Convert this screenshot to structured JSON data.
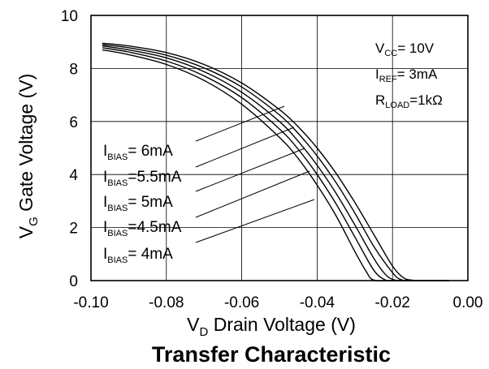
{
  "chart_data": {
    "type": "line",
    "title": "Transfer Characteristic",
    "xlabel": {
      "main": "V",
      "sub": "D",
      "rest": " Drain Voltage (V)"
    },
    "ylabel": {
      "main": "V",
      "sub": "G",
      "rest": " Gate Voltage (V)"
    },
    "xlim": [
      -0.1,
      0.0
    ],
    "ylim": [
      0,
      10
    ],
    "xticks": [
      -0.1,
      -0.08,
      -0.06,
      -0.04,
      -0.02,
      0.0
    ],
    "xtick_labels": [
      "-0.10",
      "-0.08",
      "-0.06",
      "-0.04",
      "-0.02",
      "0.00"
    ],
    "yticks": [
      0,
      2,
      4,
      6,
      8,
      10
    ],
    "ytick_labels": [
      "0",
      "2",
      "4",
      "6",
      "8",
      "10"
    ],
    "grid": true,
    "conditions": [
      {
        "main": "V",
        "sub": "CC",
        "rest": "= 10V"
      },
      {
        "main": "I",
        "sub": "REF",
        "rest": "= 3mA"
      },
      {
        "main": "R",
        "sub": "LOAD",
        "rest": "=1kΩ"
      }
    ],
    "series": [
      {
        "name": {
          "main": "I",
          "sub": "BIAS",
          "rest": "= 6mA"
        },
        "x": [
          -0.097,
          -0.09,
          -0.08,
          -0.07,
          -0.06,
          -0.05,
          -0.045,
          -0.04,
          -0.035,
          -0.03,
          -0.025,
          -0.02,
          -0.017,
          -0.015,
          -0.013,
          -0.01,
          -0.005
        ],
        "y": [
          8.95,
          8.85,
          8.6,
          8.15,
          7.45,
          6.45,
          5.8,
          5.0,
          4.05,
          2.95,
          1.75,
          0.55,
          0.1,
          0.02,
          0.0,
          0.0,
          0.0
        ]
      },
      {
        "name": {
          "main": "I",
          "sub": "BIAS",
          "rest": "=5.5mA"
        },
        "x": [
          -0.097,
          -0.09,
          -0.08,
          -0.07,
          -0.06,
          -0.05,
          -0.045,
          -0.04,
          -0.035,
          -0.03,
          -0.025,
          -0.02,
          -0.018,
          -0.016,
          -0.013,
          -0.01,
          -0.005
        ],
        "y": [
          8.9,
          8.78,
          8.5,
          8.02,
          7.3,
          6.25,
          5.55,
          4.7,
          3.7,
          2.55,
          1.3,
          0.3,
          0.05,
          0.0,
          0.0,
          0.0,
          0.0
        ]
      },
      {
        "name": {
          "main": "I",
          "sub": "BIAS",
          "rest": "= 5mA"
        },
        "x": [
          -0.097,
          -0.09,
          -0.08,
          -0.07,
          -0.06,
          -0.05,
          -0.045,
          -0.04,
          -0.035,
          -0.03,
          -0.025,
          -0.022,
          -0.02,
          -0.018,
          -0.015,
          -0.01,
          -0.005
        ],
        "y": [
          8.85,
          8.7,
          8.4,
          7.88,
          7.1,
          6.0,
          5.25,
          4.35,
          3.3,
          2.1,
          0.85,
          0.25,
          0.05,
          0.0,
          0.0,
          0.0,
          0.0
        ]
      },
      {
        "name": {
          "main": "I",
          "sub": "BIAS",
          "rest": "=4.5mA"
        },
        "x": [
          -0.097,
          -0.09,
          -0.08,
          -0.07,
          -0.06,
          -0.05,
          -0.045,
          -0.04,
          -0.035,
          -0.03,
          -0.025,
          -0.022,
          -0.02,
          -0.015,
          -0.01,
          -0.005
        ],
        "y": [
          8.78,
          8.62,
          8.28,
          7.72,
          6.9,
          5.72,
          4.95,
          4.0,
          2.9,
          1.65,
          0.4,
          0.03,
          0.0,
          0.0,
          0.0,
          0.0
        ]
      },
      {
        "name": {
          "main": "I",
          "sub": "BIAS",
          "rest": "= 4mA"
        },
        "x": [
          -0.097,
          -0.09,
          -0.08,
          -0.07,
          -0.06,
          -0.05,
          -0.045,
          -0.04,
          -0.035,
          -0.03,
          -0.027,
          -0.025,
          -0.02,
          -0.015,
          -0.01,
          -0.005
        ],
        "y": [
          8.7,
          8.52,
          8.15,
          7.55,
          6.65,
          5.4,
          4.6,
          3.6,
          2.45,
          1.1,
          0.35,
          0.02,
          0.0,
          0.0,
          0.0,
          0.0
        ]
      }
    ],
    "legend": "left"
  }
}
